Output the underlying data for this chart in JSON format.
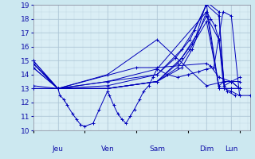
{
  "ylim": [
    10,
    19
  ],
  "yticks": [
    10,
    11,
    12,
    13,
    14,
    15,
    16,
    17,
    18,
    19
  ],
  "background_color": "#cce8f0",
  "plot_bg_color": "#daeef5",
  "grid_color": "#b0c8d8",
  "line_color": "#0000bb",
  "marker": "+",
  "markersize": 3,
  "linewidth": 0.7,
  "day_labels": [
    "Jeu",
    "Ven",
    "Sam",
    "Dim",
    "Lun"
  ],
  "day_x": [
    24,
    72,
    120,
    168,
    192
  ],
  "xlim": [
    0,
    210
  ],
  "series": [
    {
      "x": [
        0,
        24,
        100,
        120,
        168,
        172,
        180,
        192
      ],
      "y": [
        14.8,
        13.0,
        14.5,
        14.5,
        14.8,
        14.6,
        13.8,
        13.5
      ]
    },
    {
      "x": [
        0,
        24,
        26,
        30,
        33,
        38,
        42,
        46,
        50,
        58,
        64,
        72,
        74,
        78,
        82,
        86,
        90,
        94,
        98,
        103,
        107,
        112,
        116,
        120,
        130,
        140,
        150,
        160,
        168,
        175,
        184,
        192,
        200,
        210
      ],
      "y": [
        13.0,
        13.0,
        12.5,
        12.2,
        11.8,
        11.2,
        10.8,
        10.4,
        10.3,
        10.5,
        11.5,
        12.8,
        12.5,
        11.8,
        11.2,
        10.8,
        10.5,
        11.0,
        11.5,
        12.2,
        12.8,
        13.2,
        13.8,
        14.4,
        14.0,
        13.8,
        14.0,
        14.2,
        14.4,
        14.5,
        18.5,
        18.2,
        12.5,
        12.5
      ]
    },
    {
      "x": [
        0,
        24,
        72,
        120,
        168,
        172,
        176,
        180,
        184,
        188,
        196
      ],
      "y": [
        15.0,
        13.0,
        13.5,
        14.4,
        18.5,
        18.0,
        17.5,
        16.5,
        13.5,
        12.8,
        12.5
      ]
    },
    {
      "x": [
        0,
        24,
        72,
        120,
        144,
        156,
        168,
        180,
        185,
        192,
        200
      ],
      "y": [
        14.8,
        13.0,
        13.2,
        14.0,
        15.8,
        17.2,
        19.0,
        18.2,
        13.0,
        13.0,
        13.0
      ]
    },
    {
      "x": [
        0,
        24,
        72,
        120,
        140,
        152,
        168,
        180,
        185,
        192,
        200
      ],
      "y": [
        14.5,
        13.0,
        13.0,
        13.5,
        14.5,
        15.8,
        17.8,
        13.2,
        13.5,
        13.5,
        13.0
      ]
    },
    {
      "x": [
        0,
        24,
        72,
        120,
        144,
        158,
        168,
        180,
        185,
        192,
        200
      ],
      "y": [
        14.8,
        13.0,
        13.0,
        13.5,
        15.2,
        16.8,
        19.2,
        18.5,
        13.2,
        13.5,
        13.8
      ]
    },
    {
      "x": [
        0,
        24,
        72,
        120,
        140,
        154,
        168,
        180,
        185,
        192,
        200
      ],
      "y": [
        14.5,
        13.0,
        13.0,
        13.5,
        14.8,
        16.2,
        18.2,
        16.5,
        13.5,
        13.5,
        13.5
      ]
    },
    {
      "x": [
        0,
        24,
        72,
        120,
        168,
        185,
        192,
        200
      ],
      "y": [
        15.0,
        13.0,
        14.0,
        16.5,
        13.2,
        13.5,
        13.5,
        13.0
      ]
    },
    {
      "x": [
        0,
        24,
        72,
        120,
        144,
        154,
        168,
        180,
        185,
        192,
        200
      ],
      "y": [
        13.0,
        13.0,
        13.0,
        13.5,
        14.5,
        15.8,
        18.5,
        13.0,
        13.0,
        13.0,
        13.0
      ]
    },
    {
      "x": [
        0,
        24,
        72,
        120,
        138,
        152,
        168,
        180,
        185,
        192,
        200
      ],
      "y": [
        13.2,
        13.0,
        13.5,
        14.0,
        15.2,
        16.5,
        19.0,
        13.0,
        13.0,
        12.8,
        12.5
      ]
    }
  ],
  "tick_label_color": "#1111aa"
}
